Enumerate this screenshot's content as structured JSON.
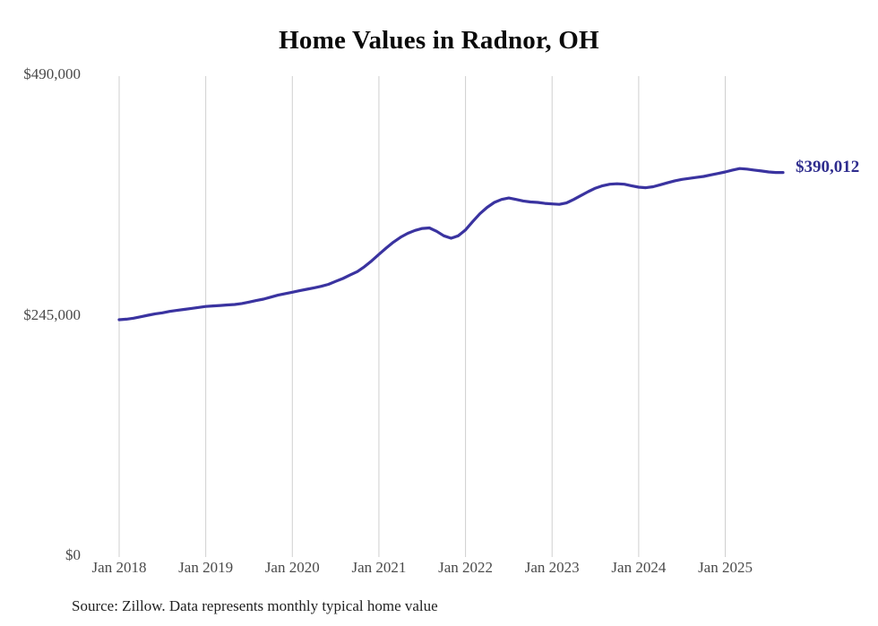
{
  "chart": {
    "title": "Home Values in Radnor, OH",
    "end_label": "$390,012",
    "source_note": "Source: Zillow. Data represents monthly typical home value"
  },
  "chart_data": {
    "type": "line",
    "title": "Home Values in Radnor, OH",
    "series_name": "Monthly typical home value",
    "x_start_month": "2018-01",
    "x_end_month": "2025-09",
    "x_cadence": "monthly",
    "x_tick_labels": [
      "Jan 2018",
      "Jan 2019",
      "Jan 2020",
      "Jan 2021",
      "Jan 2022",
      "Jan 2023",
      "Jan 2024",
      "Jan 2025"
    ],
    "y_ticks": [
      {
        "label": "$490,000",
        "value": 490000
      },
      {
        "label": "$245,000",
        "value": 245000
      },
      {
        "label": "$0",
        "value": 0
      }
    ],
    "ylim": [
      0,
      490000
    ],
    "grid": "vertical-only",
    "legend": "none",
    "line_color": "#3a33a0",
    "gridline_color": "#cfcfcf",
    "end_label": "$390,012",
    "end_value": 390012,
    "values": [
      240000,
      240500,
      241500,
      243000,
      244500,
      246000,
      247000,
      248500,
      249500,
      250500,
      251500,
      252500,
      253500,
      254000,
      254500,
      255000,
      255500,
      256500,
      258000,
      259500,
      261000,
      263000,
      265000,
      266500,
      268000,
      269500,
      271000,
      272500,
      274000,
      276000,
      279000,
      282000,
      285500,
      289000,
      294000,
      300000,
      306500,
      313000,
      319000,
      324000,
      328000,
      331000,
      333000,
      333500,
      330000,
      325500,
      323000,
      325500,
      331500,
      340000,
      348000,
      354500,
      359500,
      362500,
      364000,
      362500,
      361000,
      360000,
      359500,
      358500,
      358000,
      357500,
      359000,
      362500,
      366500,
      370500,
      374000,
      376500,
      378000,
      378500,
      378000,
      376500,
      375000,
      374500,
      375500,
      377500,
      379500,
      381500,
      383000,
      384000,
      385000,
      386000,
      387500,
      389000,
      390500,
      392500,
      394000,
      393500,
      392500,
      391500,
      390500,
      390000,
      390012
    ]
  }
}
